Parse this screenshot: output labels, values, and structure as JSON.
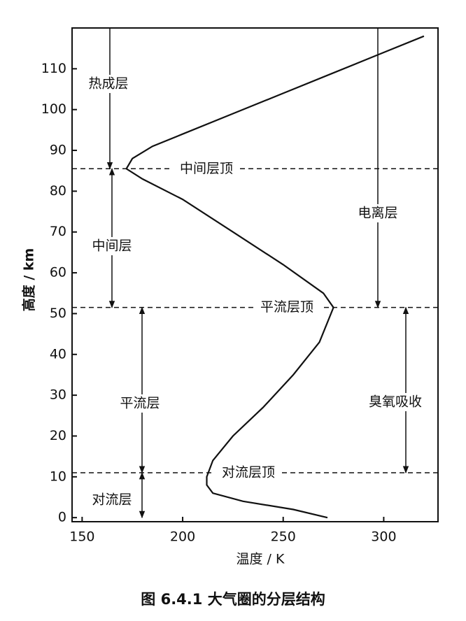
{
  "chart_data": {
    "type": "line",
    "caption": "图 6.4.1   大气圈的分层结构",
    "xlabel": "温度 / K",
    "ylabel": "高度 / km",
    "xlim": [
      145,
      327
    ],
    "ylim": [
      -1,
      120
    ],
    "xticks": [
      150,
      200,
      250,
      300
    ],
    "yticks": [
      0,
      10,
      20,
      30,
      40,
      50,
      60,
      70,
      80,
      90,
      100,
      110
    ],
    "color": "#111111",
    "x": [
      272,
      255,
      230,
      215,
      212,
      212,
      215,
      225,
      240,
      255,
      268,
      275,
      270,
      250,
      225,
      200,
      180,
      172,
      175,
      185,
      200,
      225,
      250,
      275,
      300,
      320
    ],
    "values": [
      0,
      2,
      4,
      6,
      8,
      10,
      14,
      20,
      27,
      35,
      43,
      51.5,
      55,
      62,
      70,
      78,
      83,
      85.5,
      88,
      91,
      94,
      99,
      104,
      109,
      114,
      118
    ],
    "boundaries": [
      {
        "value": 85.5,
        "label": "中间层顶"
      },
      {
        "value": 51.5,
        "label": "平流层顶"
      },
      {
        "value": 11,
        "label": "对流层顶"
      }
    ],
    "regions": [
      {
        "label": "热成层",
        "from": 85.5,
        "to": 120
      },
      {
        "label": "中间层",
        "from": 51.5,
        "to": 85.5
      },
      {
        "label": "平流层",
        "from": 11,
        "to": 51.5
      },
      {
        "label": "对流层",
        "from": 0,
        "to": 11
      },
      {
        "label": "电离层",
        "from": 51.5,
        "to": 120
      },
      {
        "label": "臭氧吸收",
        "from": 11,
        "to": 51.5
      }
    ]
  }
}
